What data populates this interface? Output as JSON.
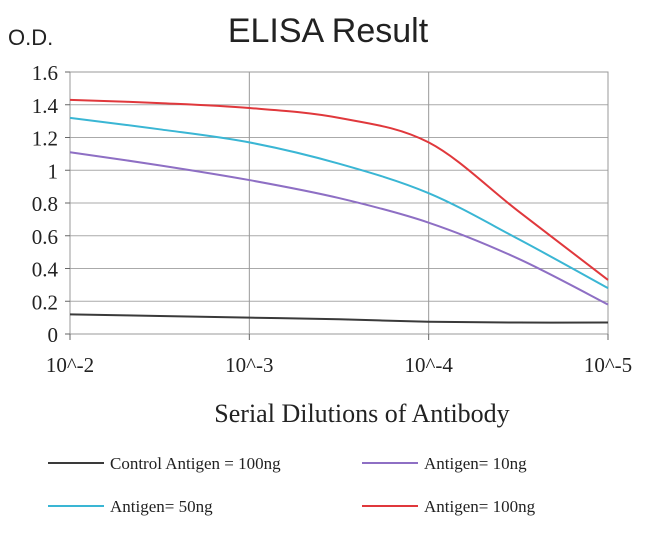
{
  "chart_data": {
    "type": "line",
    "title": "ELISA Result",
    "ylabel": "O.D.",
    "xlabel": "Serial Dilutions of Antibody",
    "x_tick_labels": [
      "10^-2",
      "10^-3",
      "10^-4",
      "10^-5"
    ],
    "y_tick_labels": [
      "0",
      "0.2",
      "0.4",
      "0.6",
      "0.8",
      "1",
      "1.2",
      "1.4",
      "1.6"
    ],
    "x": [
      -2,
      -2.5,
      -3,
      -3.5,
      -4,
      -4.5,
      -5
    ],
    "ylim": [
      0,
      1.6
    ],
    "xlim": [
      -2,
      -5
    ],
    "grid": true,
    "legend_position": "bottom",
    "series": [
      {
        "name": "Control Antigen = 100ng",
        "color": "#3a3a3a",
        "values": [
          0.12,
          0.11,
          0.1,
          0.09,
          0.075,
          0.07,
          0.07
        ]
      },
      {
        "name": "Antigen= 10ng",
        "color": "#8e6fc4",
        "values": [
          1.11,
          1.03,
          0.94,
          0.83,
          0.68,
          0.46,
          0.18
        ]
      },
      {
        "name": "Antigen= 50ng",
        "color": "#3ab6d4",
        "values": [
          1.32,
          1.25,
          1.17,
          1.04,
          0.86,
          0.58,
          0.28
        ]
      },
      {
        "name": "Antigen= 100ng",
        "color": "#e0383c",
        "values": [
          1.43,
          1.41,
          1.38,
          1.32,
          1.17,
          0.75,
          0.33
        ]
      }
    ]
  }
}
